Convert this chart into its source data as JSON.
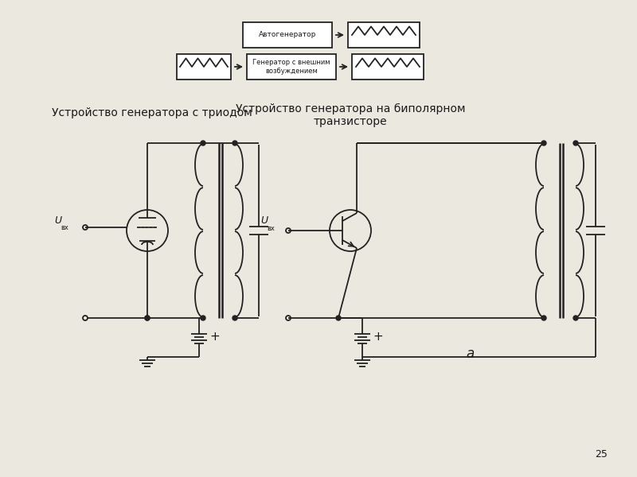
{
  "background_color": "#ebe8e0",
  "title_left": "Устройство генератора с триодом",
  "title_right": "Устройство генератора на биполярном\nтранзисторе",
  "label_a": "а",
  "page_num": "25",
  "box1_label": "Автогенератор",
  "box2_label": "Генератор с внешним\nвозбуждением",
  "text_color": "#1a1a1a",
  "line_color": "#222222",
  "font_size_title": 10,
  "font_size_label": 7,
  "font_size_small": 6
}
